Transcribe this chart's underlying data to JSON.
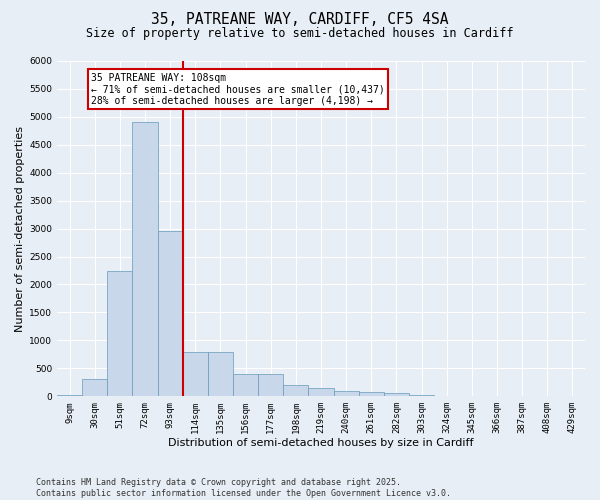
{
  "title_line1": "35, PATREANE WAY, CARDIFF, CF5 4SA",
  "title_line2": "Size of property relative to semi-detached houses in Cardiff",
  "xlabel": "Distribution of semi-detached houses by size in Cardiff",
  "ylabel": "Number of semi-detached properties",
  "bin_labels": [
    "9sqm",
    "30sqm",
    "51sqm",
    "72sqm",
    "93sqm",
    "114sqm",
    "135sqm",
    "156sqm",
    "177sqm",
    "198sqm",
    "219sqm",
    "240sqm",
    "261sqm",
    "282sqm",
    "303sqm",
    "324sqm",
    "345sqm",
    "366sqm",
    "387sqm",
    "408sqm",
    "429sqm"
  ],
  "bar_values": [
    25,
    300,
    2250,
    4900,
    2950,
    800,
    800,
    400,
    400,
    200,
    150,
    100,
    75,
    50,
    30,
    10,
    5,
    2,
    1,
    0,
    0
  ],
  "bar_color": "#c8d8ea",
  "bar_edge_color": "#6699bb",
  "vline_color": "#cc0000",
  "annotation_text": "35 PATREANE WAY: 108sqm\n← 71% of semi-detached houses are smaller (10,437)\n28% of semi-detached houses are larger (4,198) →",
  "annotation_box_color": "white",
  "annotation_box_edge": "#cc0000",
  "ylim": [
    0,
    6000
  ],
  "yticks": [
    0,
    500,
    1000,
    1500,
    2000,
    2500,
    3000,
    3500,
    4000,
    4500,
    5000,
    5500,
    6000
  ],
  "footer_line1": "Contains HM Land Registry data © Crown copyright and database right 2025.",
  "footer_line2": "Contains public sector information licensed under the Open Government Licence v3.0.",
  "bg_color": "#e8eef5",
  "plot_bg_color": "#e8eef5",
  "grid_color": "#ffffff",
  "title_fontsize": 10.5,
  "subtitle_fontsize": 8.5,
  "label_fontsize": 8,
  "tick_fontsize": 6.5,
  "footer_fontsize": 6,
  "vline_bar_index": 5
}
